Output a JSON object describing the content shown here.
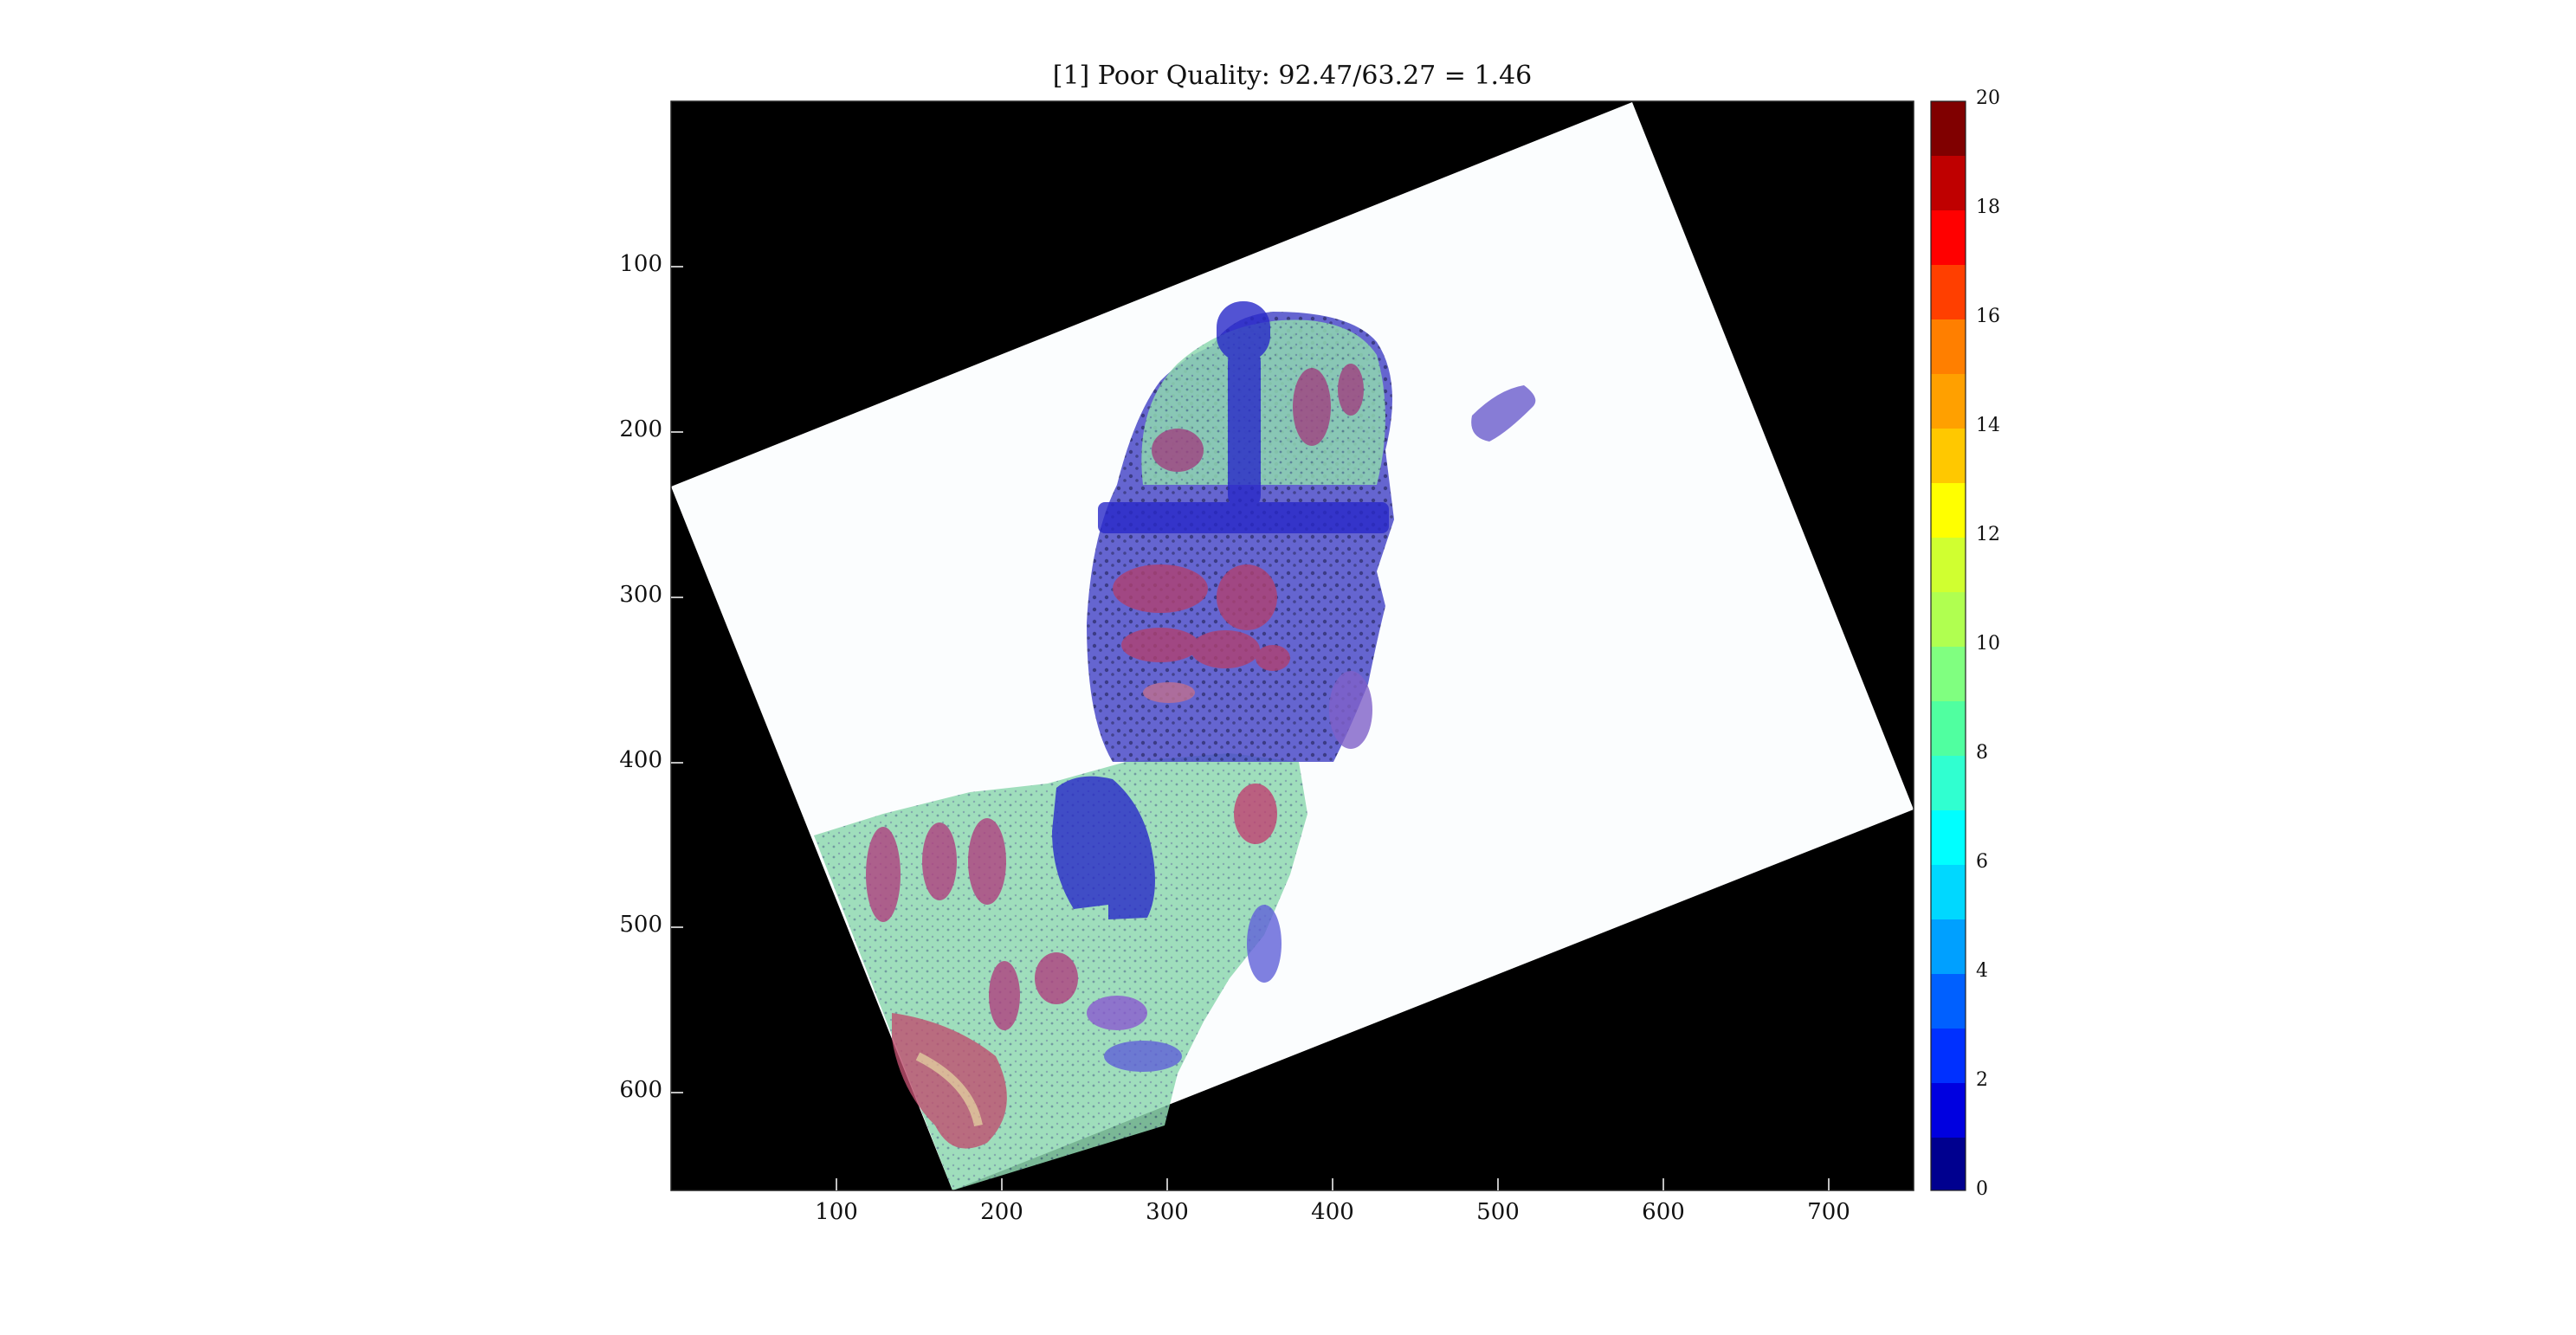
{
  "title": "[1] Poor Quality: 92.47/63.27 = 1.46",
  "axes": {
    "y_ticks": [
      "100",
      "200",
      "300",
      "400",
      "500",
      "600"
    ],
    "x_ticks": [
      "100",
      "200",
      "300",
      "400",
      "500",
      "600",
      "700"
    ]
  },
  "colorbar": {
    "ticks": [
      "0",
      "2",
      "4",
      "6",
      "8",
      "10",
      "12",
      "14",
      "16",
      "18",
      "20"
    ],
    "colormap": "jet",
    "levels": 20
  },
  "colors": {
    "background_outside": "#000000",
    "tissue_overlay_low": "#3030d0",
    "tissue_overlay_high": "#c0304a"
  }
}
